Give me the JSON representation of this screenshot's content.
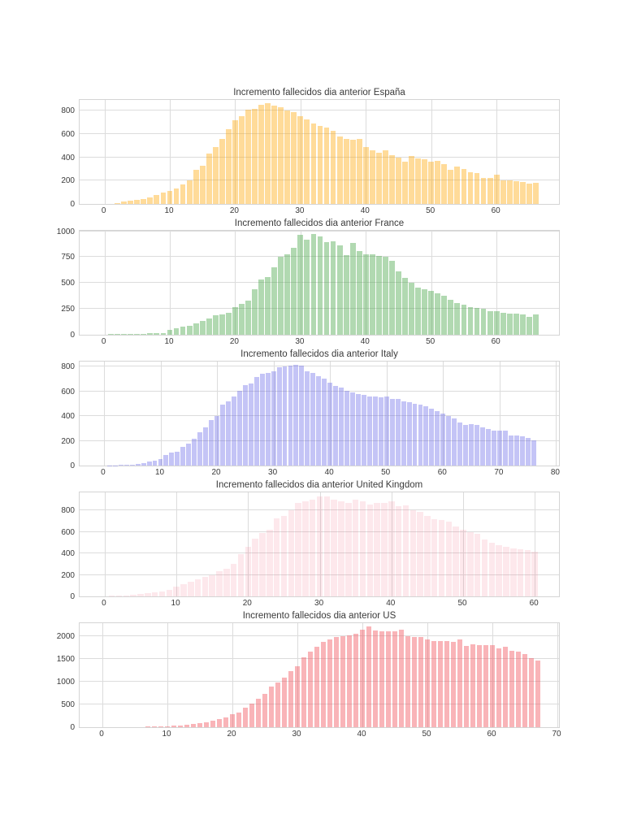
{
  "figure": {
    "background": "#ffffff",
    "text_color": "#3a3a3a",
    "grid_color": "#dcdcdc",
    "border_color": "#d4d4d4"
  },
  "chart_data": [
    {
      "type": "bar",
      "title": "Incremento fallecidos dia anterior España",
      "xlabel": "",
      "ylabel": "",
      "color": "rgba(255,165,0,0.4)",
      "grid": true,
      "legend": "none",
      "xlim": [
        -3.8,
        69.8
      ],
      "ylim": [
        0,
        905
      ],
      "x_ticks": [
        0,
        10,
        20,
        30,
        40,
        50,
        60
      ],
      "y_ticks": [
        0,
        200,
        400,
        600,
        800
      ],
      "x_first": 2,
      "values": [
        5,
        20,
        25,
        35,
        40,
        55,
        75,
        95,
        110,
        135,
        165,
        200,
        290,
        330,
        430,
        490,
        560,
        640,
        715,
        750,
        810,
        815,
        850,
        860,
        845,
        830,
        800,
        790,
        755,
        725,
        690,
        665,
        655,
        630,
        575,
        560,
        550,
        555,
        490,
        460,
        440,
        460,
        420,
        400,
        360,
        410,
        390,
        380,
        365,
        370,
        340,
        290,
        320,
        300,
        275,
        265,
        225,
        220,
        250,
        200,
        200,
        195,
        185,
        175,
        180
      ]
    },
    {
      "type": "bar",
      "title": "Incremento fallecidos dia anterior France",
      "xlabel": "",
      "ylabel": "",
      "color": "rgba(60,160,60,0.4)",
      "grid": true,
      "legend": "none",
      "xlim": [
        -3.8,
        69.8
      ],
      "ylim": [
        0,
        1020
      ],
      "x_ticks": [
        0,
        10,
        20,
        30,
        40,
        50,
        60
      ],
      "y_ticks": [
        0,
        250,
        500,
        750,
        1000
      ],
      "x_first": 1,
      "values": [
        5,
        5,
        5,
        8,
        10,
        10,
        12,
        15,
        12,
        45,
        60,
        75,
        90,
        110,
        130,
        155,
        185,
        200,
        215,
        270,
        300,
        330,
        440,
        530,
        555,
        650,
        755,
        775,
        840,
        965,
        915,
        970,
        950,
        895,
        900,
        865,
        770,
        890,
        805,
        775,
        775,
        760,
        750,
        715,
        615,
        550,
        500,
        455,
        440,
        425,
        400,
        375,
        340,
        305,
        290,
        270,
        260,
        250,
        230,
        230,
        215,
        205,
        205,
        200,
        170,
        200
      ]
    },
    {
      "type": "bar",
      "title": "Incremento fallecidos dia anterior Italy",
      "xlabel": "",
      "ylabel": "",
      "color": "rgba(85,85,230,0.35)",
      "grid": true,
      "legend": "none",
      "xlim": [
        -4.3,
        80.8
      ],
      "ylim": [
        0,
        852
      ],
      "x_ticks": [
        0,
        10,
        20,
        30,
        40,
        50,
        60,
        70,
        80
      ],
      "y_ticks": [
        0,
        200,
        400,
        600,
        800
      ],
      "x_first": 1,
      "values": [
        3,
        3,
        4,
        5,
        8,
        15,
        20,
        30,
        40,
        50,
        85,
        105,
        110,
        150,
        175,
        215,
        270,
        310,
        370,
        400,
        490,
        520,
        555,
        600,
        650,
        660,
        715,
        740,
        745,
        760,
        790,
        800,
        805,
        810,
        805,
        760,
        750,
        720,
        700,
        670,
        640,
        630,
        600,
        590,
        580,
        570,
        560,
        560,
        550,
        555,
        540,
        535,
        520,
        510,
        500,
        490,
        480,
        460,
        440,
        420,
        400,
        380,
        350,
        330,
        335,
        330,
        310,
        295,
        280,
        285,
        280,
        240,
        240,
        235,
        225,
        200
      ]
    },
    {
      "type": "bar",
      "title": "Incremento fallecidos dia anterior United Kingdom",
      "xlabel": "",
      "ylabel": "",
      "color": "rgba(240,100,130,0.15)",
      "grid": true,
      "legend": "none",
      "xlim": [
        -3.5,
        63.6
      ],
      "ylim": [
        0,
        985
      ],
      "x_ticks": [
        0,
        10,
        20,
        30,
        40,
        50,
        60
      ],
      "y_ticks": [
        0,
        200,
        400,
        600,
        800
      ],
      "x_first": 1,
      "values": [
        5,
        10,
        10,
        15,
        25,
        30,
        35,
        45,
        60,
        90,
        115,
        140,
        160,
        180,
        200,
        235,
        260,
        300,
        395,
        460,
        540,
        590,
        620,
        725,
        750,
        800,
        870,
        890,
        900,
        930,
        935,
        900,
        890,
        870,
        900,
        890,
        855,
        870,
        875,
        885,
        840,
        850,
        800,
        790,
        750,
        720,
        715,
        700,
        650,
        620,
        600,
        580,
        530,
        500,
        480,
        460,
        450,
        440,
        430,
        420
      ]
    },
    {
      "type": "bar",
      "title": "Incremento fallecidos dia anterior US",
      "xlabel": "",
      "ylabel": "",
      "color": "rgba(240,80,90,0.43)",
      "grid": true,
      "legend": "none",
      "xlim": [
        -3.5,
        70.5
      ],
      "ylim": [
        0,
        2320
      ],
      "x_ticks": [
        0,
        10,
        20,
        30,
        40,
        50,
        60,
        70
      ],
      "y_ticks": [
        0,
        500,
        1000,
        1500,
        2000
      ],
      "x_first": 7,
      "values": [
        10,
        10,
        15,
        20,
        40,
        40,
        55,
        65,
        90,
        110,
        135,
        175,
        220,
        280,
        330,
        425,
        510,
        620,
        730,
        890,
        980,
        1090,
        1240,
        1330,
        1530,
        1660,
        1770,
        1880,
        1930,
        1980,
        2000,
        2020,
        2060,
        2150,
        2210,
        2120,
        2100,
        2110,
        2100,
        2140,
        2000,
        1990,
        1980,
        1930,
        1890,
        1900,
        1900,
        1880,
        1930,
        1790,
        1820,
        1810,
        1800,
        1810,
        1740,
        1760,
        1670,
        1660,
        1600,
        1510,
        1460
      ]
    }
  ]
}
